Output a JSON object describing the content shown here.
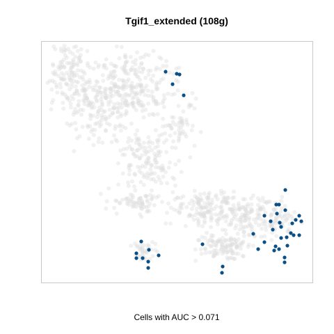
{
  "chart_data": {
    "type": "scatter",
    "title": "Tgif1_extended (108g)",
    "xlabel": "Cells with AUC > 0.071",
    "ylabel": "",
    "axes_visible": false,
    "grid": false,
    "legend": "none",
    "colors": {
      "background_cells": "#dcdcdc",
      "highlighted_cells": "#0a4f86",
      "panel_border": "#c8c8c8"
    },
    "series": [
      {
        "role": "background",
        "points": []
      },
      {
        "role": "highlighted",
        "points": [
          [
            238,
            103
          ],
          [
            254,
            106
          ],
          [
            258,
            107
          ],
          [
            248,
            121
          ],
          [
            264,
            137
          ],
          [
            410,
            273
          ],
          [
            397,
            294
          ],
          [
            401,
            294
          ],
          [
            410,
            302
          ],
          [
            398,
            307
          ],
          [
            380,
            310
          ],
          [
            430,
            310
          ],
          [
            389,
            318
          ],
          [
            433,
            318
          ],
          [
            402,
            320
          ],
          [
            420,
            321
          ],
          [
            425,
            316
          ],
          [
            404,
            326
          ],
          [
            392,
            330
          ],
          [
            364,
            336
          ],
          [
            418,
            335
          ],
          [
            422,
            338
          ],
          [
            430,
            338
          ],
          [
            404,
            342
          ],
          [
            412,
            341
          ],
          [
            380,
            348
          ],
          [
            396,
            354
          ],
          [
            413,
            353
          ],
          [
            371,
            358
          ],
          [
            394,
            360
          ],
          [
            401,
            358
          ],
          [
            409,
            370
          ],
          [
            409,
            377
          ],
          [
            203,
            347
          ],
          [
            214,
            359
          ],
          [
            196,
            364
          ],
          [
            228,
            367
          ],
          [
            196,
            371
          ],
          [
            205,
            371
          ],
          [
            213,
            376
          ],
          [
            213,
            385
          ],
          [
            291,
            351
          ],
          [
            320,
            383
          ],
          [
            319,
            392
          ]
        ]
      }
    ]
  }
}
